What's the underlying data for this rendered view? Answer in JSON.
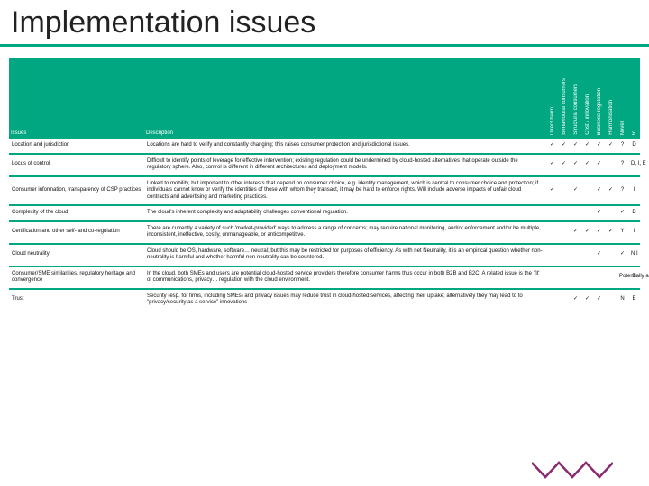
{
  "title": "Implementation issues",
  "colors": {
    "accent": "#00a780",
    "zigzag": "#8a2a6e",
    "text": "#111111",
    "bg": "#ffffff"
  },
  "header": {
    "issues": "Issues",
    "description": "Description",
    "cols": [
      "Direct harm",
      "Behavioural consumers",
      "Structural consumers",
      "Cost / innovation",
      "Business regulation",
      "Harmonisation",
      "Novel",
      "R"
    ]
  },
  "rows": [
    {
      "issue": "Location and jurisdiction",
      "desc": "Locations are hard to verify and constantly changing; this raises consumer protection and jurisdictional issues.",
      "marks": [
        "✓",
        "✓",
        "✓",
        "✓",
        "✓",
        "✓",
        "?",
        "D"
      ]
    },
    {
      "issue": "Locus of control",
      "desc": "Difficult to identify points of leverage for effective intervention; existing regulation could be undermined by cloud-hosted alternatives that operate outside the regulatory sphere. Also, control is different in different architectures and deployment models.",
      "marks": [
        "✓",
        "✓",
        "✓",
        "✓",
        "✓",
        "",
        "?",
        "D, I, E"
      ]
    },
    {
      "issue": "Consumer information, transparency of CSP practices",
      "desc": "Linked to mobility, but important to other interests that depend on consumer choice, e.g. identity management, which is central to consumer choice and protection; if individuals cannot know or verify the identities of those with whom they transact, it may be hard to enforce rights. Will include adverse impacts of unfair cloud contracts and advertising and marketing practices.",
      "marks": [
        "✓",
        "",
        "✓",
        "",
        "✓",
        "✓",
        "?",
        "I"
      ]
    },
    {
      "issue": "Complexity of the cloud",
      "desc": "The cloud's inherent complexity and adaptability challenges conventional regulation.",
      "marks": [
        "",
        "",
        "",
        "",
        "✓",
        "",
        "✓",
        "D"
      ]
    },
    {
      "issue": "Certification and other self- and co-regulation",
      "desc": "There are currently a variety of such 'market-provided' ways to address a range of concerns; may require national monitoring, and/or enforcement and/or be multiple, inconsistent, ineffective, costly, unmanageable, or anticompetitive.",
      "marks": [
        "",
        "",
        "✓",
        "✓",
        "✓",
        "✓",
        "Y",
        "I"
      ]
    },
    {
      "issue": "Cloud neutrality",
      "desc": "Cloud should be OS, hardware, software… neutral; but this may be restricted for purposes of efficiency. As with net Neutrality, it is an empirical question whether non-neutrality is harmful and whether harmful non-neutrality can be countered.",
      "marks": [
        "",
        "",
        "",
        "",
        "✓",
        "",
        "✓",
        "N I"
      ]
    },
    {
      "issue": "Consumer/SME similarities, regulatory heritage and convergence",
      "desc": "In the cloud, both SMEs and users are potential cloud-hosted service providers therefore consumer harms thus occur in both B2B and B2C. A related issue is the 'fit' of communications, privacy… regulation with the cloud environment.",
      "marks": [
        "",
        "",
        "",
        "",
        "",
        "",
        "Potentially applies across the board",
        "D"
      ]
    },
    {
      "issue": "Trust",
      "desc": "Security (esp. for firms, including SMEs) and privacy issues may reduce trust in cloud-hosted services, affecting their uptake; alternatively they may lead to to \"privacy/security as a service\" innovations",
      "marks": [
        "",
        "",
        "✓",
        "✓",
        "✓",
        "",
        "N",
        "E"
      ]
    }
  ]
}
